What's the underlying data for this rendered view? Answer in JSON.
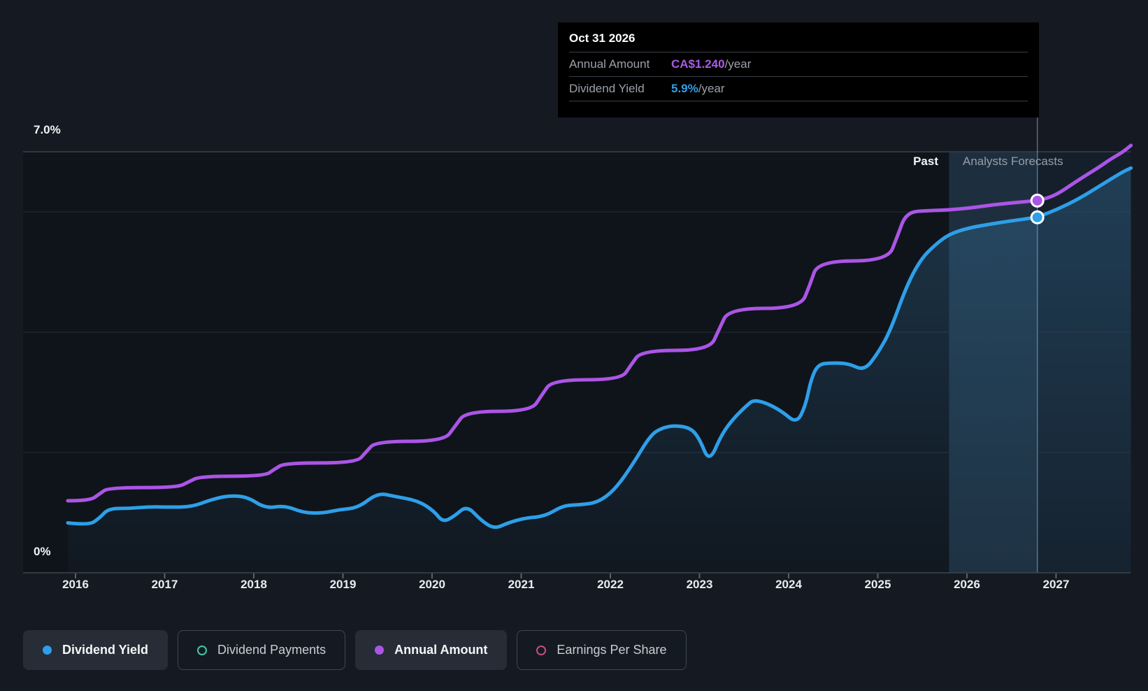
{
  "ui": {
    "axis": {
      "y_top": "7.0%",
      "y_bottom": "0%"
    },
    "tooltip": {
      "title": "Oct 31 2026",
      "rows": [
        {
          "label": "Annual Amount",
          "value": "CA$1.240",
          "suffix": "/year",
          "value_color": "#ab5ae8"
        },
        {
          "label": "Dividend Yield",
          "value": "5.9%",
          "suffix": "/year",
          "value_color": "#2f9fe8"
        }
      ]
    },
    "legend": [
      {
        "label": "Dividend Yield",
        "color": "#2e9fe8",
        "active": true,
        "marker": "filled"
      },
      {
        "label": "Dividend Payments",
        "color": "#45c4ab",
        "active": false,
        "marker": "outline"
      },
      {
        "label": "Annual Amount",
        "color": "#ab55e6",
        "active": true,
        "marker": "filled"
      },
      {
        "label": "Earnings Per Share",
        "color": "#c74b86",
        "active": false,
        "marker": "outline"
      }
    ],
    "colors": {
      "page_bg": "#151a22",
      "plot_bg": "#0f141b",
      "forecast_tint": "rgba(70,140,190,0.10)",
      "hover_band": "rgba(96,168,216,0.12)",
      "gridline": "#242b34",
      "gridline_top": "#3a414a",
      "axis_line": "#3d444d",
      "tick": "#5a616b",
      "crosshair": "rgba(147,190,222,0.5)",
      "blue": "#2e9fe8",
      "purple": "#ab55e6",
      "area_top": "rgba(62,135,185,0.30)",
      "area_bottom": "rgba(62,135,185,0.03)"
    }
  },
  "chart_data": {
    "type": "line",
    "x_axis": {
      "labels": [
        "2016",
        "2017",
        "2018",
        "2019",
        "2020",
        "2021",
        "2022",
        "2023",
        "2024",
        "2025",
        "2026",
        "2027"
      ],
      "range": [
        2015.91,
        2027.84
      ]
    },
    "y_axis": {
      "unit": "%",
      "top_label": "7.0%",
      "bottom_label": "0%",
      "range": [
        0,
        7
      ],
      "gridlines_pct": [
        2,
        4,
        6,
        7
      ]
    },
    "forecast": {
      "divider_year": 2025.8,
      "hover_year": 2026.79,
      "label_past": "Past",
      "label_forecast": "Analysts Forecasts"
    },
    "tooltip_point": {
      "date": "Oct 31 2026",
      "annual_amount": "CA$1.240",
      "dividend_yield_pct": 5.9
    },
    "series": [
      {
        "name": "Dividend Yield",
        "color": "#2e9fe8",
        "unit": "%",
        "visible": true,
        "points": [
          [
            2015.91,
            0.83
          ],
          [
            2016.15,
            0.79
          ],
          [
            2016.27,
            0.91
          ],
          [
            2016.37,
            1.07
          ],
          [
            2016.6,
            1.07
          ],
          [
            2016.84,
            1.1
          ],
          [
            2017.07,
            1.09
          ],
          [
            2017.31,
            1.1
          ],
          [
            2017.51,
            1.21
          ],
          [
            2017.7,
            1.28
          ],
          [
            2017.92,
            1.27
          ],
          [
            2018.13,
            1.07
          ],
          [
            2018.35,
            1.12
          ],
          [
            2018.55,
            1.0
          ],
          [
            2018.76,
            0.99
          ],
          [
            2018.96,
            1.05
          ],
          [
            2019.17,
            1.08
          ],
          [
            2019.39,
            1.33
          ],
          [
            2019.58,
            1.27
          ],
          [
            2019.84,
            1.2
          ],
          [
            2020.02,
            1.03
          ],
          [
            2020.12,
            0.84
          ],
          [
            2020.25,
            0.94
          ],
          [
            2020.39,
            1.12
          ],
          [
            2020.55,
            0.87
          ],
          [
            2020.7,
            0.73
          ],
          [
            2020.85,
            0.83
          ],
          [
            2021.04,
            0.91
          ],
          [
            2021.27,
            0.94
          ],
          [
            2021.47,
            1.12
          ],
          [
            2021.66,
            1.13
          ],
          [
            2021.86,
            1.17
          ],
          [
            2022.05,
            1.38
          ],
          [
            2022.25,
            1.8
          ],
          [
            2022.45,
            2.29
          ],
          [
            2022.58,
            2.41
          ],
          [
            2022.72,
            2.45
          ],
          [
            2022.9,
            2.41
          ],
          [
            2023.0,
            2.23
          ],
          [
            2023.11,
            1.83
          ],
          [
            2023.25,
            2.31
          ],
          [
            2023.39,
            2.58
          ],
          [
            2023.55,
            2.81
          ],
          [
            2023.61,
            2.87
          ],
          [
            2023.74,
            2.83
          ],
          [
            2023.92,
            2.69
          ],
          [
            2024.09,
            2.48
          ],
          [
            2024.19,
            2.78
          ],
          [
            2024.25,
            3.21
          ],
          [
            2024.33,
            3.47
          ],
          [
            2024.49,
            3.49
          ],
          [
            2024.67,
            3.48
          ],
          [
            2024.85,
            3.36
          ],
          [
            2025.0,
            3.65
          ],
          [
            2025.14,
            4.02
          ],
          [
            2025.32,
            4.76
          ],
          [
            2025.48,
            5.21
          ],
          [
            2025.64,
            5.45
          ],
          [
            2025.8,
            5.63
          ],
          [
            2026.01,
            5.73
          ],
          [
            2026.23,
            5.79
          ],
          [
            2026.49,
            5.85
          ],
          [
            2026.79,
            5.91
          ],
          [
            2027.04,
            6.06
          ],
          [
            2027.27,
            6.23
          ],
          [
            2027.51,
            6.45
          ],
          [
            2027.74,
            6.66
          ],
          [
            2027.84,
            6.73
          ]
        ]
      },
      {
        "name": "Annual Amount",
        "color": "#ab55e6",
        "unit": "CA$/year",
        "visible": true,
        "axis_factor_ca_per_pct": 0.2004,
        "note": "CA$ values estimated from plot; anchored to CA$1.240 at Oct 31 2026 tooltip",
        "points": [
          [
            2015.91,
            0.24
          ],
          [
            2016.16,
            0.24
          ],
          [
            2016.27,
            0.263
          ],
          [
            2016.37,
            0.284
          ],
          [
            2017.14,
            0.284
          ],
          [
            2017.27,
            0.303
          ],
          [
            2017.4,
            0.322
          ],
          [
            2018.12,
            0.322
          ],
          [
            2018.23,
            0.345
          ],
          [
            2018.35,
            0.366
          ],
          [
            2019.15,
            0.366
          ],
          [
            2019.26,
            0.403
          ],
          [
            2019.37,
            0.438
          ],
          [
            2020.13,
            0.438
          ],
          [
            2020.26,
            0.489
          ],
          [
            2020.38,
            0.538
          ],
          [
            2021.11,
            0.538
          ],
          [
            2021.23,
            0.592
          ],
          [
            2021.35,
            0.643
          ],
          [
            2022.12,
            0.643
          ],
          [
            2022.23,
            0.692
          ],
          [
            2022.35,
            0.741
          ],
          [
            2023.11,
            0.741
          ],
          [
            2023.22,
            0.811
          ],
          [
            2023.33,
            0.881
          ],
          [
            2024.13,
            0.881
          ],
          [
            2024.24,
            0.96
          ],
          [
            2024.33,
            1.039
          ],
          [
            2025.11,
            1.039
          ],
          [
            2025.22,
            1.121
          ],
          [
            2025.32,
            1.202
          ],
          [
            2025.58,
            1.207
          ],
          [
            2025.8,
            1.209
          ],
          [
            2026.05,
            1.216
          ],
          [
            2026.29,
            1.226
          ],
          [
            2026.52,
            1.233
          ],
          [
            2026.79,
            1.24
          ],
          [
            2026.99,
            1.256
          ],
          [
            2027.23,
            1.305
          ],
          [
            2027.47,
            1.349
          ],
          [
            2027.62,
            1.38
          ],
          [
            2027.74,
            1.4
          ],
          [
            2027.84,
            1.424
          ]
        ]
      },
      {
        "name": "Dividend Payments",
        "color": "#45c4ab",
        "visible": false,
        "points": []
      },
      {
        "name": "Earnings Per Share",
        "color": "#c74b86",
        "visible": false,
        "points": []
      }
    ]
  }
}
